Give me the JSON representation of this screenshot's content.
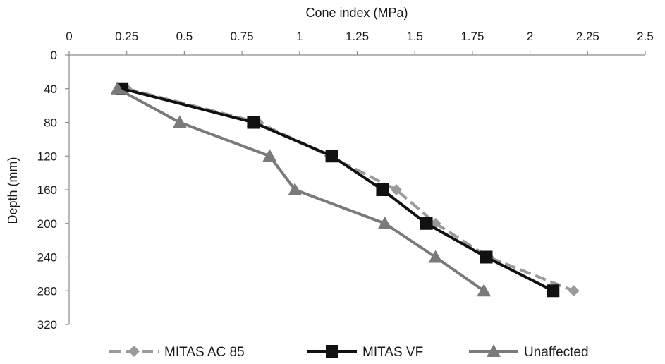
{
  "chart_data": {
    "type": "line",
    "xlabel": "Cone index (MPa)",
    "ylabel": "Depth (mm)",
    "x_ticks": [
      "0",
      "0.25",
      "0.5",
      "0.75",
      "1",
      "1.25",
      "1.5",
      "1.75",
      "2",
      "2.25",
      "2.5"
    ],
    "y_ticks": [
      "0",
      "40",
      "80",
      "120",
      "160",
      "200",
      "240",
      "280",
      "320"
    ],
    "xlim": [
      0,
      2.5
    ],
    "ylim": [
      0,
      320
    ],
    "x_axis_position": "top",
    "y_axis_inverted": true,
    "grid": false,
    "legend_position": "bottom",
    "series": [
      {
        "name": "MITAS AC 85",
        "color": "#9a9a9a",
        "line_style": "dashed",
        "marker": "diamond",
        "points": [
          {
            "x": 0.25,
            "y": 40
          },
          {
            "x": 0.82,
            "y": 80
          },
          {
            "x": 1.13,
            "y": 120
          },
          {
            "x": 1.42,
            "y": 160
          },
          {
            "x": 1.59,
            "y": 200
          },
          {
            "x": 1.82,
            "y": 240
          },
          {
            "x": 2.19,
            "y": 280
          }
        ]
      },
      {
        "name": "MITAS VF",
        "color": "#111111",
        "line_style": "solid",
        "marker": "square",
        "points": [
          {
            "x": 0.23,
            "y": 40
          },
          {
            "x": 0.8,
            "y": 80
          },
          {
            "x": 1.14,
            "y": 120
          },
          {
            "x": 1.36,
            "y": 160
          },
          {
            "x": 1.55,
            "y": 200
          },
          {
            "x": 1.81,
            "y": 240
          },
          {
            "x": 2.1,
            "y": 280
          }
        ]
      },
      {
        "name": "Unaffected",
        "color": "#7a7a7a",
        "line_style": "solid",
        "marker": "triangle",
        "points": [
          {
            "x": 0.21,
            "y": 40
          },
          {
            "x": 0.48,
            "y": 80
          },
          {
            "x": 0.87,
            "y": 120
          },
          {
            "x": 0.98,
            "y": 160
          },
          {
            "x": 1.37,
            "y": 200
          },
          {
            "x": 1.59,
            "y": 240
          },
          {
            "x": 1.8,
            "y": 280
          }
        ]
      }
    ]
  }
}
